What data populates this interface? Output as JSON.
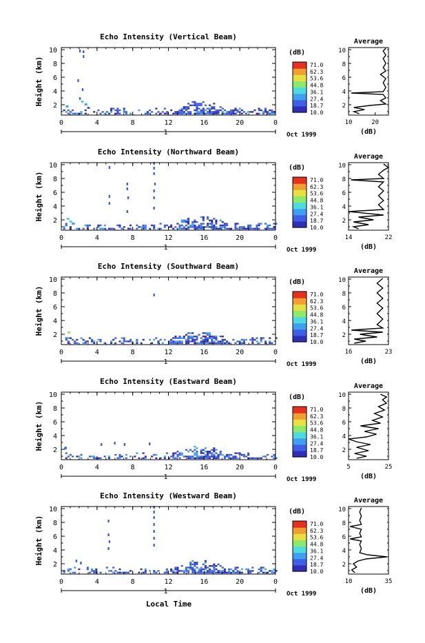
{
  "figure": {
    "xlabel": "Local Time",
    "date_label": "Oct 1999",
    "day_label": "1",
    "ylabel": "Height (km)",
    "colorbar_unit": "(dB)",
    "colorbar_ticks": [
      "71.0",
      "62.3",
      "53.6",
      "44.8",
      "36.1",
      "27.4",
      "18.7",
      "10.0"
    ],
    "colorbar_colors": [
      "#2f2fb8",
      "#3f5fe6",
      "#3fa0f0",
      "#4ddbe0",
      "#8ee86a",
      "#e6e040",
      "#f0a030",
      "#e83020"
    ],
    "avg_title": "Average",
    "avg_unit": "(dB)"
  },
  "chart_data": [
    {
      "type": "heatmap",
      "title": "Echo Intensity (Vertical Beam)",
      "x_ticks": [
        "0",
        "4",
        "8",
        "12",
        "16",
        "20",
        "0"
      ],
      "y_ticks": [
        "2",
        "4",
        "6",
        "8",
        "10"
      ],
      "xlim": [
        0,
        24
      ],
      "ylim": [
        0.5,
        10.3
      ],
      "clim": [
        10.0,
        71.0
      ],
      "avg_xlim": [
        10,
        25
      ],
      "avg_xticks": [
        "10",
        "20"
      ],
      "avg_profile": [
        [
          14,
          0.7
        ],
        [
          12,
          1.0
        ],
        [
          16,
          1.3
        ],
        [
          12,
          1.6
        ],
        [
          18,
          1.9
        ],
        [
          24,
          2.1
        ],
        [
          22,
          2.6
        ],
        [
          24,
          3.0
        ],
        [
          23,
          3.5
        ],
        [
          11,
          3.7
        ],
        [
          23,
          3.9
        ],
        [
          24,
          4.5
        ],
        [
          23,
          5.2
        ],
        [
          24,
          5.8
        ],
        [
          22,
          6.4
        ],
        [
          24,
          6.9
        ],
        [
          23,
          7.4
        ],
        [
          24,
          8.0
        ],
        [
          23,
          8.7
        ],
        [
          24,
          9.2
        ],
        [
          23,
          9.8
        ],
        [
          24,
          10.2
        ]
      ],
      "spikes": [
        [
          2.0,
          9.6
        ],
        [
          2.4,
          9.5
        ],
        [
          2.4,
          8.8
        ],
        [
          1.8,
          5.3
        ],
        [
          2.3,
          4.0
        ],
        [
          2.0,
          2.7
        ]
      ],
      "cells": [
        [
          0.5,
          1.6,
          0.3
        ],
        [
          2.2,
          2.3,
          0.45
        ],
        [
          2.6,
          1.9,
          0.35
        ],
        [
          2.9,
          1.4,
          0.2
        ]
      ]
    },
    {
      "type": "heatmap",
      "title": "Echo Intensity (Northward Beam)",
      "x_ticks": [
        "0",
        "4",
        "8",
        "12",
        "16",
        "20",
        "0"
      ],
      "y_ticks": [
        "2",
        "4",
        "6",
        "8",
        "10"
      ],
      "xlim": [
        0,
        24
      ],
      "ylim": [
        0.5,
        10.3
      ],
      "clim": [
        10.0,
        71.0
      ],
      "avg_xlim": [
        14,
        22
      ],
      "avg_xticks": [
        "14",
        "22"
      ],
      "avg_profile": [
        [
          16,
          0.7
        ],
        [
          15,
          1.0
        ],
        [
          18,
          1.3
        ],
        [
          15,
          1.7
        ],
        [
          19,
          2.0
        ],
        [
          16,
          2.4
        ],
        [
          21,
          2.7
        ],
        [
          14,
          3.2
        ],
        [
          21,
          3.5
        ],
        [
          20,
          4.2
        ],
        [
          21,
          4.8
        ],
        [
          20,
          5.5
        ],
        [
          21,
          6.2
        ],
        [
          20,
          6.8
        ],
        [
          21,
          7.5
        ],
        [
          14.5,
          7.8
        ],
        [
          21,
          8.0
        ],
        [
          20,
          8.6
        ],
        [
          21,
          9.2
        ],
        [
          22,
          9.6
        ],
        [
          21,
          10.1
        ]
      ],
      "spikes": [
        [
          5.3,
          9.4
        ],
        [
          5.3,
          5.2
        ],
        [
          5.3,
          4.2
        ],
        [
          7.3,
          7.0
        ],
        [
          7.3,
          6.3
        ],
        [
          7.4,
          5.0
        ],
        [
          7.3,
          3.0
        ],
        [
          10.3,
          10.0
        ],
        [
          10.3,
          9.3
        ],
        [
          10.3,
          8.5
        ],
        [
          10.4,
          7.0
        ],
        [
          10.3,
          6.0
        ],
        [
          10.3,
          5.0
        ],
        [
          10.3,
          3.5
        ]
      ],
      "cells": [
        [
          0.6,
          2.0,
          0.5
        ],
        [
          0.9,
          1.6,
          0.4
        ],
        [
          1.2,
          1.3,
          0.3
        ]
      ]
    },
    {
      "type": "heatmap",
      "title": "Echo Intensity (Southward Beam)",
      "x_ticks": [
        "0",
        "4",
        "8",
        "12",
        "16",
        "20",
        "0"
      ],
      "y_ticks": [
        "2",
        "4",
        "6",
        "8",
        "10"
      ],
      "xlim": [
        0,
        24
      ],
      "ylim": [
        0.5,
        10.3
      ],
      "clim": [
        10.0,
        71.0
      ],
      "avg_xlim": [
        16,
        23
      ],
      "avg_xticks": [
        "16",
        "23"
      ],
      "avg_profile": [
        [
          17,
          0.7
        ],
        [
          19,
          1.0
        ],
        [
          17,
          1.3
        ],
        [
          21,
          1.6
        ],
        [
          18,
          2.0
        ],
        [
          22,
          2.3
        ],
        [
          16.5,
          2.6
        ],
        [
          22,
          2.9
        ],
        [
          21,
          3.4
        ],
        [
          22,
          4.2
        ],
        [
          21,
          5.0
        ],
        [
          22,
          5.8
        ],
        [
          21,
          6.5
        ],
        [
          22,
          7.2
        ],
        [
          21,
          8.0
        ],
        [
          22,
          8.7
        ],
        [
          21,
          9.4
        ],
        [
          22,
          10.1
        ]
      ],
      "spikes": [
        [
          10.3,
          7.5
        ]
      ],
      "cells": [
        [
          0.7,
          2.1,
          0.55
        ]
      ]
    },
    {
      "type": "heatmap",
      "title": "Echo Intensity (Eastward Beam)",
      "x_ticks": [
        "0",
        "4",
        "8",
        "12",
        "16",
        "20",
        "0"
      ],
      "y_ticks": [
        "2",
        "4",
        "6",
        "8",
        "10"
      ],
      "xlim": [
        0,
        24
      ],
      "ylim": [
        0.5,
        10.3
      ],
      "clim": [
        10.0,
        71.0
      ],
      "avg_xlim": [
        5,
        25
      ],
      "avg_xticks": [
        "5",
        "25"
      ],
      "avg_profile": [
        [
          9,
          0.7
        ],
        [
          14,
          1.0
        ],
        [
          8,
          1.4
        ],
        [
          15,
          1.8
        ],
        [
          9,
          2.3
        ],
        [
          16,
          2.7
        ],
        [
          9,
          3.1
        ],
        [
          4,
          3.5
        ],
        [
          14,
          3.8
        ],
        [
          19,
          4.2
        ],
        [
          13,
          4.6
        ],
        [
          20,
          5.0
        ],
        [
          11,
          5.4
        ],
        [
          21,
          5.8
        ],
        [
          17,
          6.2
        ],
        [
          22,
          6.7
        ],
        [
          18,
          7.2
        ],
        [
          23,
          7.7
        ],
        [
          20,
          8.2
        ],
        [
          24,
          8.7
        ],
        [
          22,
          9.2
        ],
        [
          24,
          9.6
        ],
        [
          21,
          10.0
        ]
      ],
      "spikes": [
        [
          0.4,
          2.0
        ],
        [
          4.4,
          2.5
        ],
        [
          5.9,
          2.7
        ],
        [
          7.0,
          2.5
        ],
        [
          9.8,
          2.6
        ]
      ],
      "cells": [
        [
          0.3,
          2.0,
          0.35
        ]
      ]
    },
    {
      "type": "heatmap",
      "title": "Echo Intensity (Westward Beam)",
      "x_ticks": [
        "0",
        "4",
        "8",
        "12",
        "16",
        "20",
        "0"
      ],
      "y_ticks": [
        "2",
        "4",
        "6",
        "8",
        "10"
      ],
      "xlim": [
        0,
        24
      ],
      "ylim": [
        0.5,
        10.3
      ],
      "clim": [
        10.0,
        71.0
      ],
      "avg_xlim": [
        10,
        35
      ],
      "avg_xticks": [
        "10",
        "35"
      ],
      "avg_profile": [
        [
          14,
          0.7
        ],
        [
          12,
          1.1
        ],
        [
          15,
          1.5
        ],
        [
          13,
          2.0
        ],
        [
          16,
          2.4
        ],
        [
          21,
          2.7
        ],
        [
          34,
          3.0
        ],
        [
          22,
          3.3
        ],
        [
          17,
          3.6
        ],
        [
          18,
          4.2
        ],
        [
          17,
          4.8
        ],
        [
          18,
          5.3
        ],
        [
          11,
          5.6
        ],
        [
          18,
          5.9
        ],
        [
          17,
          6.4
        ],
        [
          18,
          7.0
        ],
        [
          11,
          7.4
        ],
        [
          18,
          7.7
        ],
        [
          17,
          8.3
        ],
        [
          18,
          8.9
        ],
        [
          17,
          9.5
        ],
        [
          18,
          10.1
        ]
      ],
      "spikes": [
        [
          5.2,
          8.0
        ],
        [
          5.2,
          6.0
        ],
        [
          5.3,
          5.0
        ],
        [
          5.2,
          4.0
        ],
        [
          10.3,
          10.0
        ],
        [
          10.3,
          9.3
        ],
        [
          10.3,
          8.5
        ],
        [
          10.3,
          7.5
        ],
        [
          10.3,
          6.5
        ],
        [
          10.3,
          5.5
        ],
        [
          10.3,
          4.5
        ],
        [
          1.6,
          2.2
        ],
        [
          2.1,
          1.9
        ]
      ],
      "cells": []
    }
  ]
}
